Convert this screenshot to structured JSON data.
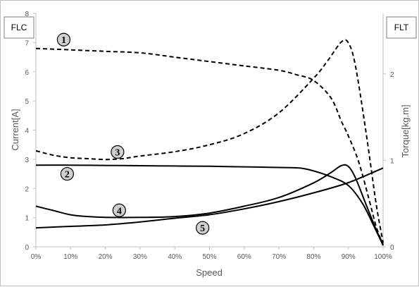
{
  "chart_data": {
    "type": "line",
    "xlabel": "Speed",
    "ylabel": "Current[A]",
    "y2label": "Torque[kg.m]",
    "left_box_label": "FLC",
    "right_box_label": "FLT",
    "xlim": [
      0,
      100
    ],
    "ylim": [
      0,
      8
    ],
    "y2lim": [
      0,
      2.7
    ],
    "x_tick_labels": [
      "0%",
      "10%",
      "20%",
      "30%",
      "40%",
      "50%",
      "60%",
      "70%",
      "80%",
      "90%",
      "100%"
    ],
    "y_tick_labels": [
      "0",
      "1",
      "2",
      "3",
      "4",
      "5",
      "6",
      "7",
      "8"
    ],
    "y2_tick_labels": [
      "0",
      "1",
      "2"
    ],
    "grid": false,
    "series": [
      {
        "name": "1",
        "axis": "left",
        "style": "dashed",
        "points": [
          [
            0,
            6.8
          ],
          [
            10,
            6.75
          ],
          [
            20,
            6.7
          ],
          [
            30,
            6.65
          ],
          [
            40,
            6.5
          ],
          [
            50,
            6.35
          ],
          [
            60,
            6.2
          ],
          [
            70,
            6.05
          ],
          [
            75,
            5.9
          ],
          [
            80,
            5.7
          ],
          [
            85,
            5.1
          ],
          [
            88,
            4.3
          ],
          [
            90,
            3.8
          ],
          [
            93,
            2.9
          ],
          [
            96,
            1.6
          ],
          [
            98,
            0.7
          ],
          [
            100,
            0.05
          ]
        ]
      },
      {
        "name": "2",
        "axis": "left",
        "style": "solid",
        "points": [
          [
            0,
            2.8
          ],
          [
            10,
            2.8
          ],
          [
            20,
            2.79
          ],
          [
            30,
            2.78
          ],
          [
            40,
            2.77
          ],
          [
            50,
            2.76
          ],
          [
            60,
            2.74
          ],
          [
            70,
            2.72
          ],
          [
            76,
            2.7
          ],
          [
            80,
            2.6
          ],
          [
            85,
            2.4
          ],
          [
            90,
            2.1
          ],
          [
            94,
            1.5
          ],
          [
            97,
            0.8
          ],
          [
            100,
            0.05
          ]
        ]
      },
      {
        "name": "3",
        "axis": "right",
        "style": "dashed",
        "points": [
          [
            0,
            1.11
          ],
          [
            5,
            1.06
          ],
          [
            10,
            1.03
          ],
          [
            15,
            1.02
          ],
          [
            20,
            1.01
          ],
          [
            25,
            1.02
          ],
          [
            30,
            1.05
          ],
          [
            40,
            1.1
          ],
          [
            50,
            1.18
          ],
          [
            60,
            1.31
          ],
          [
            70,
            1.55
          ],
          [
            80,
            1.95
          ],
          [
            84,
            2.15
          ],
          [
            88,
            2.37
          ],
          [
            90,
            2.36
          ],
          [
            92,
            2.1
          ],
          [
            95,
            1.35
          ],
          [
            98,
            0.5
          ],
          [
            100,
            0.05
          ]
        ]
      },
      {
        "name": "4",
        "axis": "right",
        "style": "solid",
        "points": [
          [
            0,
            0.47
          ],
          [
            5,
            0.42
          ],
          [
            10,
            0.37
          ],
          [
            15,
            0.35
          ],
          [
            20,
            0.34
          ],
          [
            30,
            0.34
          ],
          [
            40,
            0.35
          ],
          [
            50,
            0.39
          ],
          [
            60,
            0.47
          ],
          [
            70,
            0.57
          ],
          [
            80,
            0.74
          ],
          [
            85,
            0.86
          ],
          [
            88,
            0.94
          ],
          [
            90,
            0.93
          ],
          [
            92,
            0.8
          ],
          [
            95,
            0.5
          ],
          [
            98,
            0.2
          ],
          [
            100,
            0.03
          ]
        ]
      },
      {
        "name": "5",
        "axis": "left",
        "style": "solid",
        "points": [
          [
            0,
            0.65
          ],
          [
            10,
            0.7
          ],
          [
            20,
            0.75
          ],
          [
            30,
            0.85
          ],
          [
            40,
            0.98
          ],
          [
            50,
            1.1
          ],
          [
            60,
            1.3
          ],
          [
            70,
            1.55
          ],
          [
            80,
            1.85
          ],
          [
            90,
            2.2
          ],
          [
            100,
            2.7
          ]
        ]
      }
    ],
    "markers": [
      {
        "label": "1",
        "series": "1",
        "x": 8,
        "y": 7.1
      },
      {
        "label": "2",
        "series": "2",
        "x": 9,
        "y": 2.5
      },
      {
        "label": "3",
        "series": "3",
        "x": 23.5,
        "y": 3.25
      },
      {
        "label": "4",
        "series": "4",
        "x": 24,
        "y": 1.25
      },
      {
        "label": "5",
        "series": "5",
        "x": 48,
        "y": 0.65
      }
    ]
  }
}
